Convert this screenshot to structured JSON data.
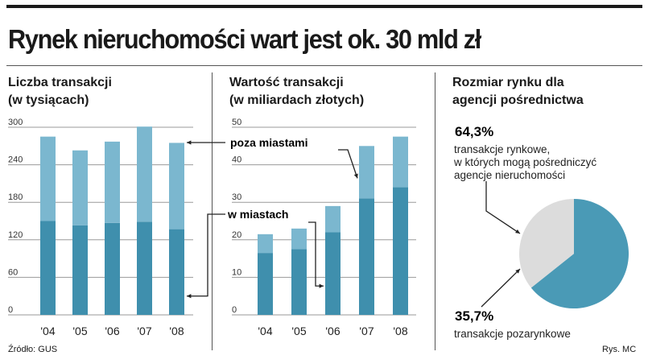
{
  "title": "Rynek nieruchomości wart jest ok. 30 mld zł",
  "source": "Źródło: GUS",
  "credit": "Rys. MC",
  "colors": {
    "light": "#7bb7cf",
    "dark": "#3f8fad",
    "pie_main": "#4a9ab6",
    "pie_rest": "#dcdcdc",
    "grid": "#9a9a9a"
  },
  "chart_data": [
    {
      "type": "bar",
      "stacked": true,
      "title_line1": "Liczba transakcji",
      "title_line2": "(w tysiącach)",
      "categories": [
        "'04",
        "'05",
        "'06",
        "'07",
        "'08"
      ],
      "yticks": [
        "300",
        "240",
        "180",
        "120",
        "60",
        "0"
      ],
      "ylim": [
        0,
        300
      ],
      "series": [
        {
          "name": "w miastach",
          "values": [
            150,
            143,
            147,
            149,
            137
          ]
        },
        {
          "name": "poza miastami",
          "values": [
            135,
            120,
            130,
            152,
            138
          ]
        }
      ]
    },
    {
      "type": "bar",
      "stacked": true,
      "title_line1": "Wartość transakcji",
      "title_line2": "(w miliardach złotych)",
      "categories": [
        "'04",
        "'05",
        "'06",
        "'07",
        "'08"
      ],
      "yticks": [
        "50",
        "40",
        "30",
        "20",
        "10",
        "0"
      ],
      "ylim": [
        0,
        50
      ],
      "series": [
        {
          "name": "w miastach",
          "values": [
            16.5,
            17.5,
            22,
            31,
            34
          ]
        },
        {
          "name": "poza miastami",
          "values": [
            5,
            5.5,
            7,
            14,
            13.5
          ]
        }
      ]
    },
    {
      "type": "pie",
      "title_line1": "Rozmiar rynku dla",
      "title_line2": "agencji pośrednictwa",
      "slices": [
        {
          "pct_label": "64,3%",
          "value": 64.3,
          "desc": [
            "transakcje rynkowe,",
            "w których mogą pośredniczyć",
            "agencje nieruchomości"
          ]
        },
        {
          "pct_label": "35,7%",
          "value": 35.7,
          "desc": [
            "transakcje pozarynkowe"
          ]
        }
      ]
    }
  ],
  "annotations": {
    "outside": "poza miastami",
    "inside": "w miastach"
  }
}
